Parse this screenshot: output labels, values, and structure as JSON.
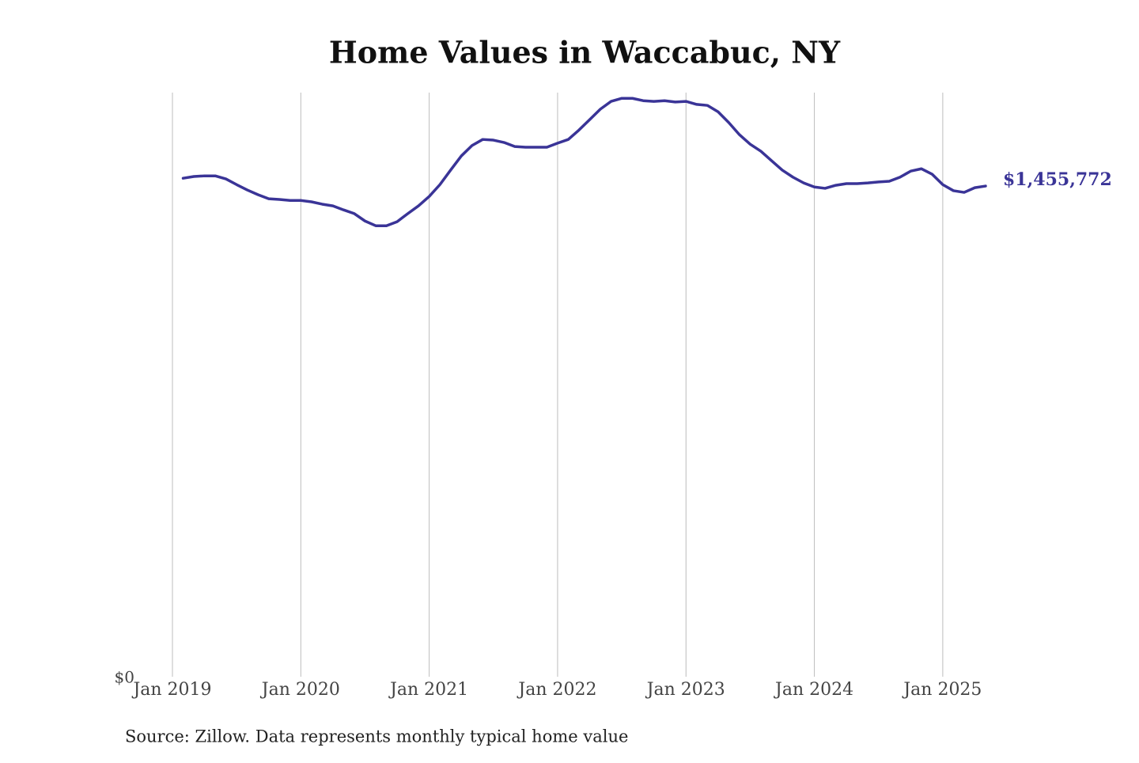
{
  "chart_data": {
    "type": "line",
    "title": "Home Values in Waccabuc, NY",
    "source": "Source: Zillow. Data represents monthly typical home value",
    "x": [
      "2019-02",
      "2019-03",
      "2019-04",
      "2019-05",
      "2019-06",
      "2019-07",
      "2019-08",
      "2019-09",
      "2019-10",
      "2019-11",
      "2019-12",
      "2020-01",
      "2020-02",
      "2020-03",
      "2020-04",
      "2020-05",
      "2020-06",
      "2020-07",
      "2020-08",
      "2020-09",
      "2020-10",
      "2020-11",
      "2020-12",
      "2021-01",
      "2021-02",
      "2021-03",
      "2021-04",
      "2021-05",
      "2021-06",
      "2021-07",
      "2021-08",
      "2021-09",
      "2021-10",
      "2021-11",
      "2021-12",
      "2022-01",
      "2022-02",
      "2022-03",
      "2022-04",
      "2022-05",
      "2022-06",
      "2022-07",
      "2022-08",
      "2022-09",
      "2022-10",
      "2022-11",
      "2022-12",
      "2023-01",
      "2023-02",
      "2023-03",
      "2023-04",
      "2023-05",
      "2023-06",
      "2023-07",
      "2023-08",
      "2023-09",
      "2023-10",
      "2023-11",
      "2023-12",
      "2024-01",
      "2024-02",
      "2024-03",
      "2024-04",
      "2024-05",
      "2024-06",
      "2024-07",
      "2024-08",
      "2024-09",
      "2024-10",
      "2024-11",
      "2024-12",
      "2025-01",
      "2025-02",
      "2025-03",
      "2025-04",
      "2025-05"
    ],
    "series": [
      {
        "name": "Typical home value",
        "color": "#3a3497",
        "values": [
          1479000,
          1484000,
          1486000,
          1486000,
          1477000,
          1460000,
          1444000,
          1430000,
          1418000,
          1416000,
          1413000,
          1413000,
          1409000,
          1402000,
          1397000,
          1385000,
          1374000,
          1352000,
          1338000,
          1338000,
          1350000,
          1374000,
          1397000,
          1425000,
          1460000,
          1503000,
          1545000,
          1576000,
          1594000,
          1592000,
          1585000,
          1573000,
          1571000,
          1571000,
          1571000,
          1583000,
          1594000,
          1622000,
          1653000,
          1684000,
          1707000,
          1716000,
          1716000,
          1709000,
          1707000,
          1709000,
          1705000,
          1707000,
          1698000,
          1695000,
          1676000,
          1644000,
          1608000,
          1580000,
          1559000,
          1531000,
          1503000,
          1482000,
          1465000,
          1453000,
          1449000,
          1458000,
          1463000,
          1463000,
          1465000,
          1468000,
          1470000,
          1482000,
          1500000,
          1507000,
          1491000,
          1460000,
          1442000,
          1437000,
          1451000,
          1455772
        ],
        "value_labels": [
          null,
          null,
          null,
          null,
          null,
          null,
          null,
          null,
          null,
          null,
          null,
          null,
          null,
          null,
          null,
          null,
          null,
          null,
          null,
          null,
          null,
          null,
          null,
          null,
          null,
          null,
          null,
          null,
          null,
          null,
          null,
          null,
          null,
          null,
          null,
          null,
          null,
          null,
          null,
          null,
          null,
          null,
          null,
          null,
          null,
          null,
          null,
          null,
          null,
          null,
          null,
          null,
          null,
          null,
          null,
          null,
          null,
          null,
          null,
          null,
          null,
          null,
          null,
          null,
          null,
          null,
          null,
          null,
          null,
          null,
          null,
          null,
          null,
          null,
          null,
          "$1,455,772"
        ]
      }
    ],
    "xlim": [
      "2019-01",
      "2025-05"
    ],
    "xticks": [
      {
        "value": "2019-01",
        "label": "Jan 2019"
      },
      {
        "value": "2020-01",
        "label": "Jan 2020"
      },
      {
        "value": "2021-01",
        "label": "Jan 2021"
      },
      {
        "value": "2022-01",
        "label": "Jan 2022"
      },
      {
        "value": "2023-01",
        "label": "Jan 2023"
      },
      {
        "value": "2024-01",
        "label": "Jan 2024"
      },
      {
        "value": "2025-01",
        "label": "Jan 2025"
      }
    ],
    "ylim": [
      0,
      1733000
    ],
    "yticks": [
      {
        "value": 0,
        "label": "$0"
      }
    ],
    "grid": "x"
  }
}
